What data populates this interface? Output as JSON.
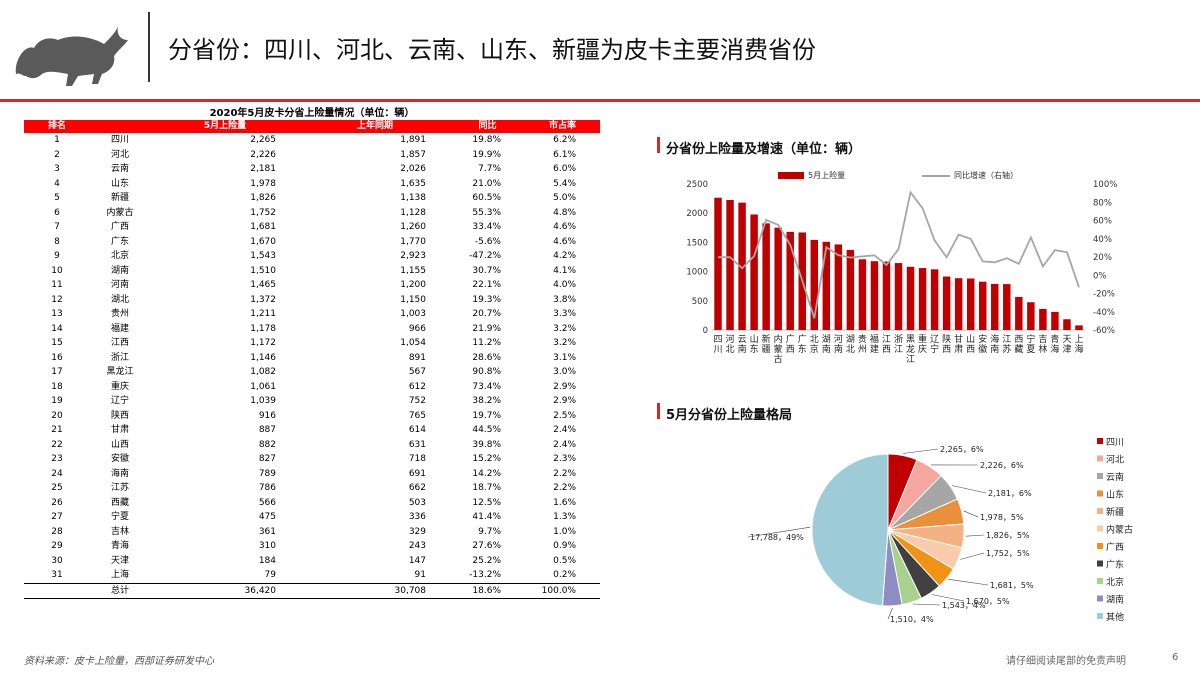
{
  "header": {
    "title": "分省份：四川、河北、云南、山东、新疆为皮卡主要消费省份"
  },
  "table": {
    "title": "2020年5月皮卡分省上险量情况（单位：辆）",
    "columns": [
      "排名",
      "",
      "5月上险量",
      "上年同期",
      "同比",
      "市占率"
    ],
    "rows": [
      [
        "1",
        "四川",
        "2,265",
        "1,891",
        "19.8%",
        "6.2%"
      ],
      [
        "2",
        "河北",
        "2,226",
        "1,857",
        "19.9%",
        "6.1%"
      ],
      [
        "3",
        "云南",
        "2,181",
        "2,026",
        "7.7%",
        "6.0%"
      ],
      [
        "4",
        "山东",
        "1,978",
        "1,635",
        "21.0%",
        "5.4%"
      ],
      [
        "5",
        "新疆",
        "1,826",
        "1,138",
        "60.5%",
        "5.0%"
      ],
      [
        "6",
        "内蒙古",
        "1,752",
        "1,128",
        "55.3%",
        "4.8%"
      ],
      [
        "7",
        "广西",
        "1,681",
        "1,260",
        "33.4%",
        "4.6%"
      ],
      [
        "8",
        "广东",
        "1,670",
        "1,770",
        "-5.6%",
        "4.6%"
      ],
      [
        "9",
        "北京",
        "1,543",
        "2,923",
        "-47.2%",
        "4.2%"
      ],
      [
        "10",
        "湖南",
        "1,510",
        "1,155",
        "30.7%",
        "4.1%"
      ],
      [
        "11",
        "河南",
        "1,465",
        "1,200",
        "22.1%",
        "4.0%"
      ],
      [
        "12",
        "湖北",
        "1,372",
        "1,150",
        "19.3%",
        "3.8%"
      ],
      [
        "13",
        "贵州",
        "1,211",
        "1,003",
        "20.7%",
        "3.3%"
      ],
      [
        "14",
        "福建",
        "1,178",
        "966",
        "21.9%",
        "3.2%"
      ],
      [
        "15",
        "江西",
        "1,172",
        "1,054",
        "11.2%",
        "3.2%"
      ],
      [
        "16",
        "浙江",
        "1,146",
        "891",
        "28.6%",
        "3.1%"
      ],
      [
        "17",
        "黑龙江",
        "1,082",
        "567",
        "90.8%",
        "3.0%"
      ],
      [
        "18",
        "重庆",
        "1,061",
        "612",
        "73.4%",
        "2.9%"
      ],
      [
        "19",
        "辽宁",
        "1,039",
        "752",
        "38.2%",
        "2.9%"
      ],
      [
        "20",
        "陕西",
        "916",
        "765",
        "19.7%",
        "2.5%"
      ],
      [
        "21",
        "甘肃",
        "887",
        "614",
        "44.5%",
        "2.4%"
      ],
      [
        "22",
        "山西",
        "882",
        "631",
        "39.8%",
        "2.4%"
      ],
      [
        "23",
        "安徽",
        "827",
        "718",
        "15.2%",
        "2.3%"
      ],
      [
        "24",
        "海南",
        "789",
        "691",
        "14.2%",
        "2.2%"
      ],
      [
        "25",
        "江苏",
        "786",
        "662",
        "18.7%",
        "2.2%"
      ],
      [
        "26",
        "西藏",
        "566",
        "503",
        "12.5%",
        "1.6%"
      ],
      [
        "27",
        "宁夏",
        "475",
        "336",
        "41.4%",
        "1.3%"
      ],
      [
        "28",
        "吉林",
        "361",
        "329",
        "9.7%",
        "1.0%"
      ],
      [
        "29",
        "青海",
        "310",
        "243",
        "27.6%",
        "0.9%"
      ],
      [
        "30",
        "天津",
        "184",
        "147",
        "25.2%",
        "0.5%"
      ],
      [
        "31",
        "上海",
        "79",
        "91",
        "-13.2%",
        "0.2%"
      ]
    ],
    "total": [
      "",
      "总计",
      "36,420",
      "30,708",
      "18.6%",
      "100.0%"
    ]
  },
  "bar_section_title": "分省份上险量及增速（单位：辆）",
  "pie_section_title": "5月分省份上险量格局",
  "chart_data": [
    {
      "type": "bar",
      "title": "分省份上险量及增速（单位：辆）",
      "categories": [
        "四川",
        "河北",
        "云南",
        "山东",
        "新疆",
        "内蒙古",
        "广西",
        "广东",
        "北京",
        "湖南",
        "河南",
        "湖北",
        "贵州",
        "福建",
        "江西",
        "浙江",
        "黑龙江",
        "重庆",
        "辽宁",
        "陕西",
        "甘肃",
        "山西",
        "安徽",
        "海南",
        "江苏",
        "西藏",
        "宁夏",
        "吉林",
        "青海",
        "天津",
        "上海"
      ],
      "series": [
        {
          "name": "5月上险量",
          "type": "bar",
          "color": "#c00000",
          "axis": "left",
          "values": [
            2265,
            2226,
            2181,
            1978,
            1826,
            1752,
            1681,
            1670,
            1543,
            1510,
            1465,
            1372,
            1211,
            1178,
            1172,
            1146,
            1082,
            1061,
            1039,
            916,
            887,
            882,
            827,
            789,
            786,
            566,
            475,
            361,
            310,
            184,
            79
          ]
        },
        {
          "name": "同比增速（右轴）",
          "type": "line",
          "color": "#a6a6a6",
          "axis": "right",
          "values": [
            19.8,
            19.9,
            7.7,
            21.0,
            60.5,
            55.3,
            33.4,
            -5.6,
            -47.2,
            30.7,
            22.1,
            19.3,
            20.7,
            21.9,
            11.2,
            28.6,
            90.8,
            73.4,
            38.2,
            19.7,
            44.5,
            39.8,
            15.2,
            14.2,
            18.7,
            12.5,
            41.4,
            9.7,
            27.6,
            25.2,
            -13.2
          ]
        }
      ],
      "ylim": [
        0,
        2500
      ],
      "yticks": [
        "0",
        "500",
        "1000",
        "1500",
        "2000",
        "2500"
      ],
      "y2lim": [
        -60,
        100
      ],
      "y2ticks": [
        "-60%",
        "-40%",
        "-20%",
        "0%",
        "20%",
        "40%",
        "60%",
        "80%",
        "100%"
      ],
      "legend": "top"
    },
    {
      "type": "pie",
      "title": "5月分省份上险量格局",
      "labels": [
        "四川",
        "河北",
        "云南",
        "山东",
        "新疆",
        "内蒙古",
        "广西",
        "广东",
        "北京",
        "湖南",
        "其他"
      ],
      "values": [
        2265,
        2226,
        2181,
        1978,
        1826,
        1752,
        1681,
        1670,
        1543,
        1510,
        17788
      ],
      "data_labels": [
        "2,265，6%",
        "2,226，6%",
        "2,181，6%",
        "1,978，5%",
        "1,826，5%",
        "1,752，5%",
        "1,681，5%",
        "1,670，5%",
        "1,543，4%",
        "1,510，4%",
        "17,788，49%"
      ],
      "colors": [
        "#c00000",
        "#f4a6a0",
        "#a6a6a6",
        "#e8913a",
        "#f4b183",
        "#f8cbad",
        "#f19215",
        "#404040",
        "#a9d18e",
        "#8e8cc0",
        "#9ecbd8"
      ],
      "legend": "right"
    }
  ],
  "footer": {
    "source": "资料来源：皮卡上险量，西部证券研发中心",
    "disclaimer": "请仔细阅读尾部的免责声明",
    "page": "6"
  }
}
